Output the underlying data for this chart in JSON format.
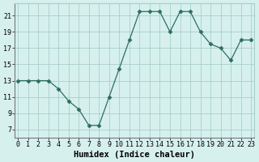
{
  "x": [
    0,
    1,
    2,
    3,
    4,
    5,
    6,
    7,
    8,
    9,
    10,
    11,
    12,
    13,
    14,
    15,
    16,
    17,
    18,
    19,
    20,
    21,
    22,
    23
  ],
  "y": [
    13,
    13,
    13,
    13,
    12,
    10.5,
    9.5,
    7.5,
    7.5,
    11,
    14.5,
    18,
    21.5,
    21.5,
    21.5,
    19,
    21.5,
    21.5,
    19,
    17.5,
    17,
    15.5,
    18,
    18
  ],
  "line_color": "#2d6e5e",
  "marker": "D",
  "marker_size": 2.5,
  "bg_color": "#d6f0ee",
  "grid_color": "#a8cfc8",
  "xlabel": "Humidex (Indice chaleur)",
  "xlabel_fontsize": 7.5,
  "tick_fontsize": 6.0,
  "yticks": [
    7,
    9,
    11,
    13,
    15,
    17,
    19,
    21
  ],
  "xticks": [
    0,
    1,
    2,
    3,
    4,
    5,
    6,
    7,
    8,
    9,
    10,
    11,
    12,
    13,
    14,
    15,
    16,
    17,
    18,
    19,
    20,
    21,
    22,
    23
  ],
  "xlim": [
    -0.3,
    23.3
  ],
  "ylim": [
    6.0,
    22.5
  ]
}
